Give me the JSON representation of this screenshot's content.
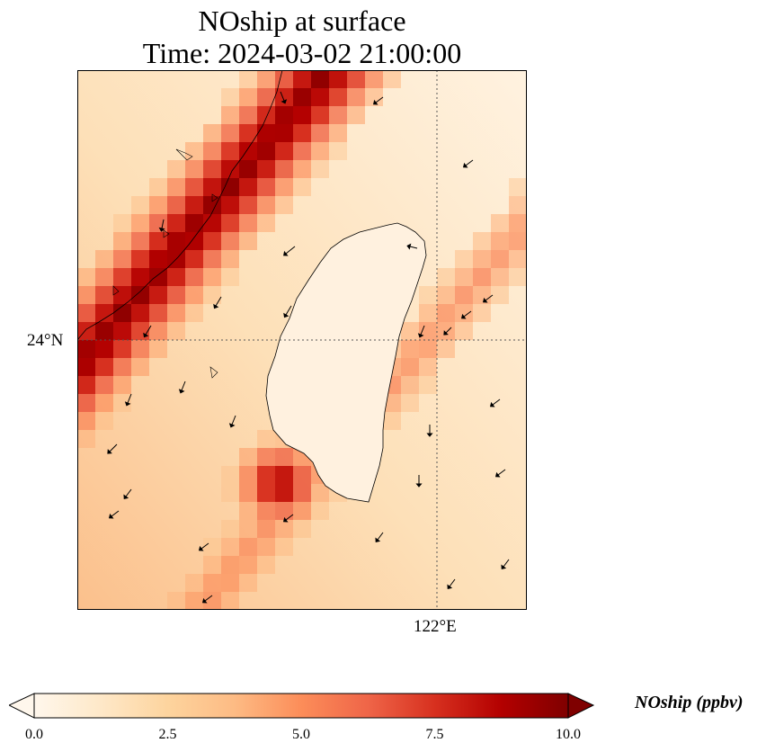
{
  "title": {
    "line1": "NOship at surface",
    "line2": "Time: 2024-03-02 21:00:00"
  },
  "map": {
    "lat_tick_label": "24°N",
    "lon_tick_label": "122°E",
    "gridline_style": "dotted",
    "colormap": "OrRd"
  },
  "colorbar": {
    "label": "NOship (ppbv)",
    "min": 0.0,
    "max": 10.0,
    "extend": "both",
    "ticks": [
      "0.0",
      "2.5",
      "5.0",
      "7.5",
      "10.0"
    ],
    "colors": [
      "#fff7ec",
      "#fee8c8",
      "#fdd49e",
      "#fdbb84",
      "#fc8d59",
      "#ef6548",
      "#d7301f",
      "#b30000",
      "#7f0000"
    ]
  }
}
